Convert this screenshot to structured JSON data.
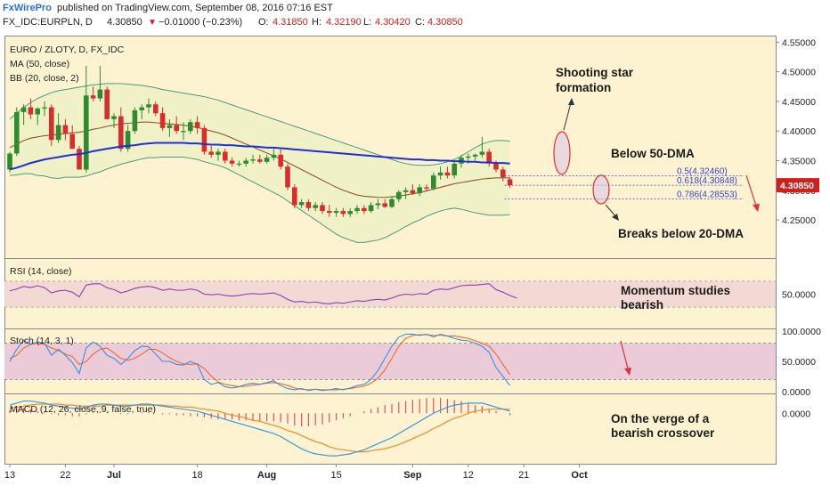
{
  "header": {
    "brand": "FxWirePro",
    "published": "published on TradingView.com, September 08, 2016 07:16 EST",
    "symbol": "FX_IDC:EURPLN, D",
    "last": "4.30850",
    "change_arrow": "▼",
    "change": "−0.01000 (−0.23%)",
    "o_label": "O:",
    "o": "4.31850",
    "h_label": "H:",
    "h": "4.32190",
    "l_label": "L:",
    "l": "4.30420",
    "c_label": "C:",
    "c": "4.30850"
  },
  "colors": {
    "background": "#fdf3d1",
    "up_candle": "#2e8b2e",
    "down_candle": "#d92c2c",
    "ma50": "#1f2fd6",
    "bb_mid": "#8b5a2b",
    "bb_band": "#4a9a7a",
    "bb_fill": "#f1f1c8",
    "rsi_line": "#8a3fb5",
    "rsi_band": "#f3d9d3",
    "stoch_k": "#3a8fe0",
    "stoch_d": "#ee6a2e",
    "stoch_band": "#eccbd8",
    "macd_line": "#3a9ae0",
    "macd_signal": "#f08a2a",
    "macd_hist": "#e05060",
    "price_tag": "#d0201e",
    "annotation_arrow": "#e03030"
  },
  "chart_data": {
    "type": "candlestick",
    "title": "EURO / ZLOTY, D, FX_IDC",
    "overlays": [
      "MA (50, close)",
      "BB (20, close, 2)"
    ],
    "price_axis": {
      "ylim": [
        4.19,
        4.555
      ],
      "ticks": [
        "4.55000",
        "4.50000",
        "4.45000",
        "4.40000",
        "4.35000",
        "4.30000",
        "4.25000"
      ],
      "tick_values": [
        4.55,
        4.5,
        4.45,
        4.4,
        4.35,
        4.3,
        4.25
      ],
      "last_price_label": "4.30850"
    },
    "x_axis": {
      "labels": [
        "13",
        "22",
        "Jul",
        "18",
        "Aug",
        "15",
        "Sep",
        "12",
        "21",
        "Oct"
      ],
      "label_index": [
        0,
        8,
        15,
        27,
        37,
        47,
        58,
        66,
        74,
        82
      ],
      "bar_count": 86
    },
    "candles": [
      {
        "o": 4.335,
        "h": 4.365,
        "l": 4.33,
        "c": 4.362
      },
      {
        "o": 4.362,
        "h": 4.44,
        "l": 4.358,
        "c": 4.432
      },
      {
        "o": 4.432,
        "h": 4.445,
        "l": 4.41,
        "c": 4.44
      },
      {
        "o": 4.44,
        "h": 4.455,
        "l": 4.42,
        "c": 4.428
      },
      {
        "o": 4.428,
        "h": 4.44,
        "l": 4.41,
        "c": 4.438
      },
      {
        "o": 4.438,
        "h": 4.45,
        "l": 4.425,
        "c": 4.44
      },
      {
        "o": 4.44,
        "h": 4.445,
        "l": 4.375,
        "c": 4.385
      },
      {
        "o": 4.385,
        "h": 4.43,
        "l": 4.38,
        "c": 4.41
      },
      {
        "o": 4.41,
        "h": 4.42,
        "l": 4.385,
        "c": 4.395
      },
      {
        "o": 4.395,
        "h": 4.41,
        "l": 4.37,
        "c": 4.37
      },
      {
        "o": 4.37,
        "h": 4.375,
        "l": 4.335,
        "c": 4.335
      },
      {
        "o": 4.335,
        "h": 4.51,
        "l": 4.33,
        "c": 4.46
      },
      {
        "o": 4.46,
        "h": 4.475,
        "l": 4.45,
        "c": 4.455
      },
      {
        "o": 4.455,
        "h": 4.51,
        "l": 4.45,
        "c": 4.47
      },
      {
        "o": 4.47,
        "h": 4.475,
        "l": 4.42,
        "c": 4.42
      },
      {
        "o": 4.42,
        "h": 4.43,
        "l": 4.405,
        "c": 4.425
      },
      {
        "o": 4.425,
        "h": 4.44,
        "l": 4.365,
        "c": 4.37
      },
      {
        "o": 4.37,
        "h": 4.41,
        "l": 4.365,
        "c": 4.4
      },
      {
        "o": 4.4,
        "h": 4.44,
        "l": 4.395,
        "c": 4.435
      },
      {
        "o": 4.435,
        "h": 4.445,
        "l": 4.42,
        "c": 4.44
      },
      {
        "o": 4.44,
        "h": 4.455,
        "l": 4.43,
        "c": 4.445
      },
      {
        "o": 4.445,
        "h": 4.45,
        "l": 4.425,
        "c": 4.43
      },
      {
        "o": 4.43,
        "h": 4.44,
        "l": 4.4,
        "c": 4.405
      },
      {
        "o": 4.405,
        "h": 4.42,
        "l": 4.39,
        "c": 4.41
      },
      {
        "o": 4.41,
        "h": 4.425,
        "l": 4.395,
        "c": 4.4
      },
      {
        "o": 4.4,
        "h": 4.415,
        "l": 4.385,
        "c": 4.4
      },
      {
        "o": 4.4,
        "h": 4.42,
        "l": 4.395,
        "c": 4.415
      },
      {
        "o": 4.415,
        "h": 4.425,
        "l": 4.395,
        "c": 4.405
      },
      {
        "o": 4.405,
        "h": 4.41,
        "l": 4.36,
        "c": 4.365
      },
      {
        "o": 4.365,
        "h": 4.375,
        "l": 4.355,
        "c": 4.36
      },
      {
        "o": 4.36,
        "h": 4.37,
        "l": 4.35,
        "c": 4.365
      },
      {
        "o": 4.365,
        "h": 4.37,
        "l": 4.345,
        "c": 4.35
      },
      {
        "o": 4.35,
        "h": 4.355,
        "l": 4.34,
        "c": 4.345
      },
      {
        "o": 4.345,
        "h": 4.35,
        "l": 4.34,
        "c": 4.345
      },
      {
        "o": 4.345,
        "h": 4.355,
        "l": 4.34,
        "c": 4.35
      },
      {
        "o": 4.35,
        "h": 4.36,
        "l": 4.345,
        "c": 4.352
      },
      {
        "o": 4.352,
        "h": 4.36,
        "l": 4.345,
        "c": 4.348
      },
      {
        "o": 4.348,
        "h": 4.36,
        "l": 4.345,
        "c": 4.355
      },
      {
        "o": 4.355,
        "h": 4.37,
        "l": 4.35,
        "c": 4.36
      },
      {
        "o": 4.36,
        "h": 4.37,
        "l": 4.335,
        "c": 4.34
      },
      {
        "o": 4.34,
        "h": 4.345,
        "l": 4.3,
        "c": 4.305
      },
      {
        "o": 4.305,
        "h": 4.31,
        "l": 4.27,
        "c": 4.275
      },
      {
        "o": 4.275,
        "h": 4.285,
        "l": 4.27,
        "c": 4.28
      },
      {
        "o": 4.28,
        "h": 4.285,
        "l": 4.265,
        "c": 4.27
      },
      {
        "o": 4.27,
        "h": 4.28,
        "l": 4.265,
        "c": 4.275
      },
      {
        "o": 4.275,
        "h": 4.28,
        "l": 4.26,
        "c": 4.265
      },
      {
        "o": 4.265,
        "h": 4.275,
        "l": 4.255,
        "c": 4.262
      },
      {
        "o": 4.262,
        "h": 4.27,
        "l": 4.255,
        "c": 4.265
      },
      {
        "o": 4.265,
        "h": 4.27,
        "l": 4.255,
        "c": 4.26
      },
      {
        "o": 4.26,
        "h": 4.27,
        "l": 4.255,
        "c": 4.265
      },
      {
        "o": 4.265,
        "h": 4.275,
        "l": 4.26,
        "c": 4.27
      },
      {
        "o": 4.27,
        "h": 4.275,
        "l": 4.26,
        "c": 4.265
      },
      {
        "o": 4.265,
        "h": 4.28,
        "l": 4.262,
        "c": 4.275
      },
      {
        "o": 4.275,
        "h": 4.285,
        "l": 4.268,
        "c": 4.278
      },
      {
        "o": 4.278,
        "h": 4.285,
        "l": 4.27,
        "c": 4.272
      },
      {
        "o": 4.272,
        "h": 4.29,
        "l": 4.27,
        "c": 4.285
      },
      {
        "o": 4.285,
        "h": 4.3,
        "l": 4.28,
        "c": 4.297
      },
      {
        "o": 4.297,
        "h": 4.305,
        "l": 4.285,
        "c": 4.3
      },
      {
        "o": 4.3,
        "h": 4.31,
        "l": 4.292,
        "c": 4.295
      },
      {
        "o": 4.295,
        "h": 4.31,
        "l": 4.29,
        "c": 4.305
      },
      {
        "o": 4.305,
        "h": 4.31,
        "l": 4.298,
        "c": 4.303
      },
      {
        "o": 4.303,
        "h": 4.33,
        "l": 4.3,
        "c": 4.325
      },
      {
        "o": 4.325,
        "h": 4.34,
        "l": 4.318,
        "c": 4.33
      },
      {
        "o": 4.33,
        "h": 4.34,
        "l": 4.32,
        "c": 4.325
      },
      {
        "o": 4.325,
        "h": 4.35,
        "l": 4.32,
        "c": 4.345
      },
      {
        "o": 4.345,
        "h": 4.36,
        "l": 4.338,
        "c": 4.355
      },
      {
        "o": 4.355,
        "h": 4.362,
        "l": 4.345,
        "c": 4.357
      },
      {
        "o": 4.357,
        "h": 4.362,
        "l": 4.35,
        "c": 4.36
      },
      {
        "o": 4.36,
        "h": 4.39,
        "l": 4.355,
        "c": 4.365
      },
      {
        "o": 4.365,
        "h": 4.37,
        "l": 4.34,
        "c": 4.345
      },
      {
        "o": 4.345,
        "h": 4.35,
        "l": 4.33,
        "c": 4.335
      },
      {
        "o": 4.335,
        "h": 4.34,
        "l": 4.315,
        "c": 4.322
      },
      {
        "o": 4.3185,
        "h": 4.3219,
        "l": 4.3042,
        "c": 4.3085
      }
    ],
    "ma50": [
      4.335,
      4.338,
      4.342,
      4.346,
      4.349,
      4.352,
      4.354,
      4.356,
      4.358,
      4.36,
      4.361,
      4.363,
      4.366,
      4.368,
      4.37,
      4.372,
      4.374,
      4.375,
      4.376,
      4.378,
      4.379,
      4.38,
      4.38,
      4.38,
      4.38,
      4.38,
      4.379,
      4.379,
      4.378,
      4.377,
      4.377,
      4.376,
      4.376,
      4.375,
      4.374,
      4.374,
      4.373,
      4.372,
      4.372,
      4.371,
      4.37,
      4.369,
      4.368,
      4.367,
      4.366,
      4.365,
      4.364,
      4.363,
      4.362,
      4.361,
      4.36,
      4.359,
      4.358,
      4.357,
      4.356,
      4.355,
      4.354,
      4.353,
      4.352,
      4.352,
      4.351,
      4.351,
      4.35,
      4.35,
      4.349,
      4.349,
      4.348,
      4.348,
      4.347,
      4.347,
      4.346,
      4.346,
      4.345
    ],
    "bb_mid": [
      4.372,
      4.378,
      4.384,
      4.388,
      4.39,
      4.392,
      4.393,
      4.394,
      4.396,
      4.397,
      4.398,
      4.4,
      4.403,
      4.405,
      4.408,
      4.41,
      4.412,
      4.413,
      4.414,
      4.415,
      4.415,
      4.414,
      4.413,
      4.412,
      4.411,
      4.41,
      4.408,
      4.406,
      4.403,
      4.4,
      4.397,
      4.393,
      4.388,
      4.383,
      4.378,
      4.373,
      4.368,
      4.363,
      4.358,
      4.353,
      4.347,
      4.341,
      4.335,
      4.329,
      4.323,
      4.317,
      4.311,
      4.305,
      4.3,
      4.296,
      4.292,
      4.29,
      4.289,
      4.288,
      4.288,
      4.289,
      4.29,
      4.292,
      4.294,
      4.296,
      4.299,
      4.302,
      4.305,
      4.308,
      4.311,
      4.313,
      4.315,
      4.317,
      4.319,
      4.32,
      4.321,
      4.321,
      4.321
    ],
    "bb_upper": [
      4.42,
      4.43,
      4.44,
      4.448,
      4.455,
      4.46,
      4.465,
      4.468,
      4.47,
      4.472,
      4.474,
      4.476,
      4.478,
      4.479,
      4.48,
      4.48,
      4.48,
      4.479,
      4.478,
      4.477,
      4.475,
      4.473,
      4.47,
      4.468,
      4.466,
      4.464,
      4.462,
      4.46,
      4.458,
      4.455,
      4.452,
      4.448,
      4.444,
      4.44,
      4.436,
      4.432,
      4.428,
      4.424,
      4.42,
      4.416,
      4.412,
      4.408,
      4.404,
      4.4,
      4.396,
      4.392,
      4.388,
      4.384,
      4.38,
      4.376,
      4.372,
      4.368,
      4.364,
      4.36,
      4.356,
      4.352,
      4.348,
      4.345,
      4.343,
      4.342,
      4.342,
      4.343,
      4.345,
      4.348,
      4.352,
      4.358,
      4.365,
      4.372,
      4.378,
      4.382,
      4.384,
      4.384,
      4.383
    ],
    "bb_lower": [
      4.325,
      4.326,
      4.328,
      4.328,
      4.325,
      4.324,
      4.321,
      4.32,
      4.322,
      4.322,
      4.322,
      4.324,
      4.328,
      4.331,
      4.336,
      4.34,
      4.344,
      4.347,
      4.35,
      4.353,
      4.355,
      4.355,
      4.356,
      4.356,
      4.356,
      4.356,
      4.354,
      4.352,
      4.348,
      4.345,
      4.342,
      4.338,
      4.332,
      4.326,
      4.32,
      4.314,
      4.308,
      4.302,
      4.296,
      4.29,
      4.282,
      4.274,
      4.266,
      4.258,
      4.25,
      4.242,
      4.234,
      4.226,
      4.22,
      4.216,
      4.212,
      4.212,
      4.214,
      4.216,
      4.22,
      4.226,
      4.232,
      4.239,
      4.245,
      4.25,
      4.256,
      4.261,
      4.265,
      4.268,
      4.27,
      4.268,
      4.265,
      4.262,
      4.26,
      4.258,
      4.258,
      4.258,
      4.259
    ],
    "fib_levels": [
      {
        "label": "0.5(4.32460)",
        "value": 4.3246
      },
      {
        "label": "0.618(4.30848)",
        "value": 4.30848
      },
      {
        "label": "0.786(4.28553)",
        "value": 4.28553
      }
    ],
    "annotations": [
      {
        "name": "shooting-star",
        "text": [
          "Shooting star",
          "formation"
        ]
      },
      {
        "name": "below-50dma",
        "text": [
          "Below 50-DMA"
        ]
      },
      {
        "name": "breaks-20dma",
        "text": [
          "Breaks below 20-DMA"
        ]
      },
      {
        "name": "momentum",
        "text": [
          "Momentum studies",
          "bearish"
        ]
      },
      {
        "name": "crossover",
        "text": [
          "On the verge of a",
          "bearish crossover"
        ]
      }
    ],
    "rsi": {
      "label": "RSI (14, close)",
      "tick": "50.0000",
      "values": [
        55,
        58,
        62,
        60,
        63,
        60,
        52,
        55,
        56,
        53,
        46,
        64,
        66,
        66,
        60,
        57,
        52,
        55,
        59,
        61,
        62,
        60,
        56,
        58,
        56,
        56,
        58,
        56,
        50,
        49,
        50,
        48,
        47,
        48,
        50,
        51,
        50,
        51,
        52,
        48,
        42,
        38,
        39,
        37,
        38,
        36,
        35,
        37,
        36,
        38,
        40,
        39,
        41,
        42,
        41,
        44,
        48,
        50,
        49,
        51,
        50,
        56,
        58,
        57,
        60,
        63,
        64,
        64,
        65,
        66,
        57,
        53,
        48,
        44
      ]
    },
    "stoch": {
      "label": "Stoch (14, 3, 1)",
      "ticks": [
        "100.0000",
        "50.0000",
        "0.0000"
      ],
      "k": [
        50,
        70,
        85,
        78,
        82,
        80,
        60,
        70,
        60,
        48,
        30,
        72,
        82,
        75,
        60,
        55,
        45,
        55,
        68,
        75,
        74,
        62,
        50,
        50,
        45,
        44,
        50,
        45,
        20,
        12,
        15,
        8,
        6,
        8,
        12,
        14,
        12,
        15,
        18,
        10,
        5,
        3,
        5,
        2,
        4,
        2,
        3,
        5,
        3,
        6,
        10,
        12,
        20,
        35,
        55,
        75,
        90,
        95,
        95,
        93,
        95,
        90,
        95,
        92,
        88,
        85,
        84,
        80,
        75,
        65,
        40,
        25,
        10
      ],
      "d": [
        55,
        60,
        72,
        78,
        80,
        78,
        72,
        68,
        62,
        58,
        45,
        50,
        62,
        70,
        72,
        64,
        55,
        52,
        55,
        62,
        70,
        70,
        64,
        56,
        50,
        46,
        45,
        46,
        38,
        26,
        16,
        12,
        10,
        8,
        9,
        11,
        12,
        14,
        15,
        13,
        10,
        6,
        4,
        3,
        4,
        3,
        3,
        3,
        4,
        5,
        7,
        9,
        14,
        22,
        36,
        55,
        75,
        88,
        93,
        94,
        94,
        93,
        93,
        92,
        92,
        90,
        88,
        84,
        80,
        75,
        62,
        45,
        28
      ]
    },
    "macd": {
      "label": "MACD (12, 26, close, 9, false, true)",
      "tick": "0.0000",
      "macd_line": [
        0.008,
        0.01,
        0.012,
        0.012,
        0.011,
        0.01,
        0.008,
        0.007,
        0.006,
        0.005,
        0.004,
        0.006,
        0.008,
        0.009,
        0.009,
        0.008,
        0.007,
        0.007,
        0.008,
        0.009,
        0.009,
        0.008,
        0.007,
        0.006,
        0.005,
        0.004,
        0.003,
        0.002,
        0.0,
        -0.002,
        -0.004,
        -0.006,
        -0.008,
        -0.01,
        -0.012,
        -0.014,
        -0.016,
        -0.018,
        -0.02,
        -0.023,
        -0.027,
        -0.031,
        -0.035,
        -0.038,
        -0.04,
        -0.041,
        -0.042,
        -0.042,
        -0.041,
        -0.04,
        -0.038,
        -0.036,
        -0.033,
        -0.03,
        -0.027,
        -0.024,
        -0.02,
        -0.016,
        -0.012,
        -0.008,
        -0.004,
        0.0,
        0.003,
        0.006,
        0.008,
        0.009,
        0.01,
        0.01,
        0.01,
        0.008,
        0.006,
        0.004,
        0.002
      ],
      "signal": [
        0.005,
        0.006,
        0.007,
        0.008,
        0.009,
        0.009,
        0.009,
        0.009,
        0.008,
        0.008,
        0.007,
        0.007,
        0.007,
        0.007,
        0.008,
        0.008,
        0.008,
        0.008,
        0.008,
        0.008,
        0.008,
        0.008,
        0.008,
        0.007,
        0.007,
        0.006,
        0.006,
        0.005,
        0.004,
        0.003,
        0.002,
        0.0,
        -0.002,
        -0.003,
        -0.005,
        -0.007,
        -0.008,
        -0.01,
        -0.012,
        -0.014,
        -0.017,
        -0.019,
        -0.022,
        -0.025,
        -0.028,
        -0.03,
        -0.033,
        -0.035,
        -0.036,
        -0.037,
        -0.038,
        -0.038,
        -0.037,
        -0.036,
        -0.035,
        -0.033,
        -0.031,
        -0.028,
        -0.025,
        -0.022,
        -0.019,
        -0.015,
        -0.012,
        -0.008,
        -0.005,
        -0.003,
        0.0,
        0.002,
        0.003,
        0.004,
        0.004,
        0.004,
        0.004
      ]
    }
  }
}
